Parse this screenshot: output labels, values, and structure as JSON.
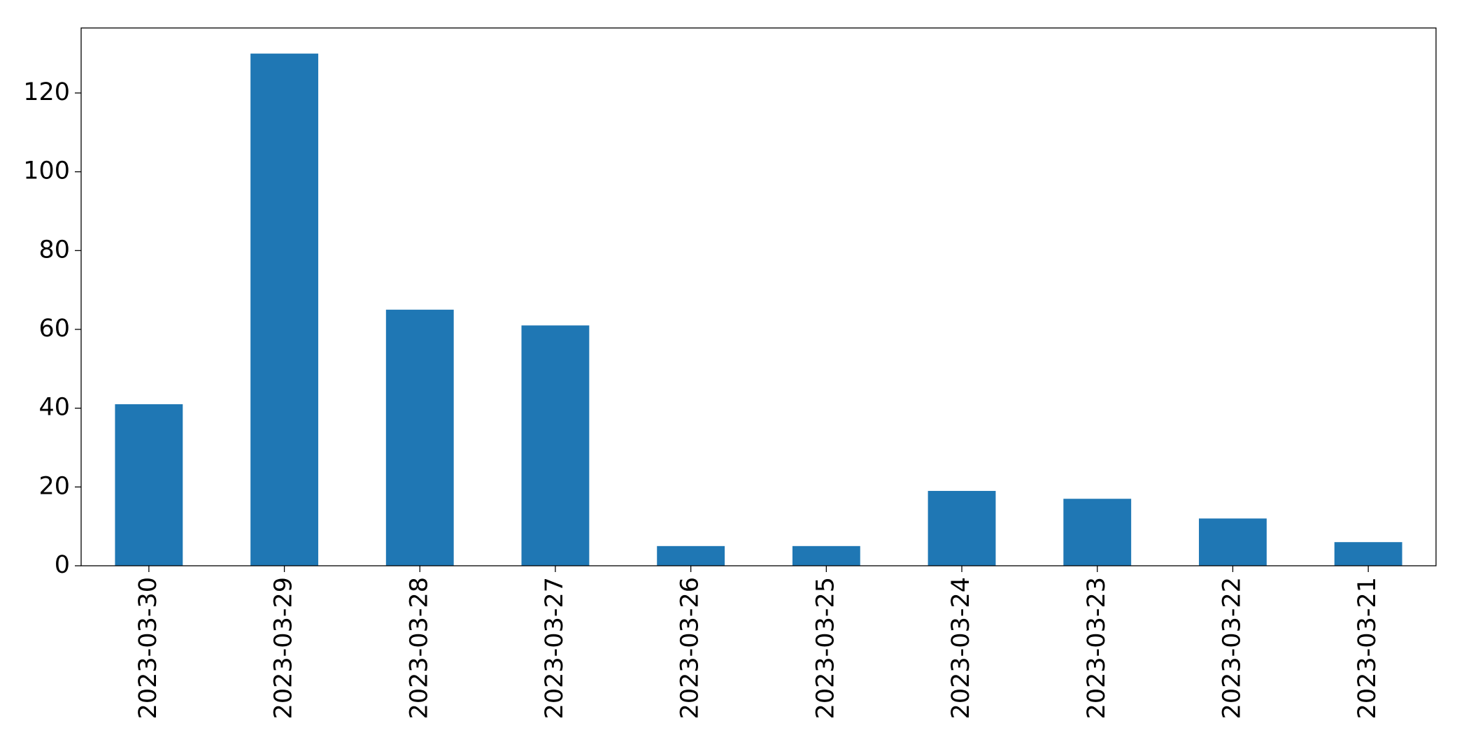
{
  "chart_data": {
    "type": "bar",
    "categories": [
      "2023-03-30",
      "2023-03-29",
      "2023-03-28",
      "2023-03-27",
      "2023-03-26",
      "2023-03-25",
      "2023-03-24",
      "2023-03-23",
      "2023-03-22",
      "2023-03-21"
    ],
    "values": [
      41,
      130,
      65,
      61,
      5,
      5,
      19,
      17,
      12,
      6
    ],
    "color": "#1f77b4",
    "ylim": [
      0,
      136.5
    ],
    "yticks": [
      0,
      20,
      40,
      60,
      80,
      100,
      120
    ],
    "grid": false
  }
}
